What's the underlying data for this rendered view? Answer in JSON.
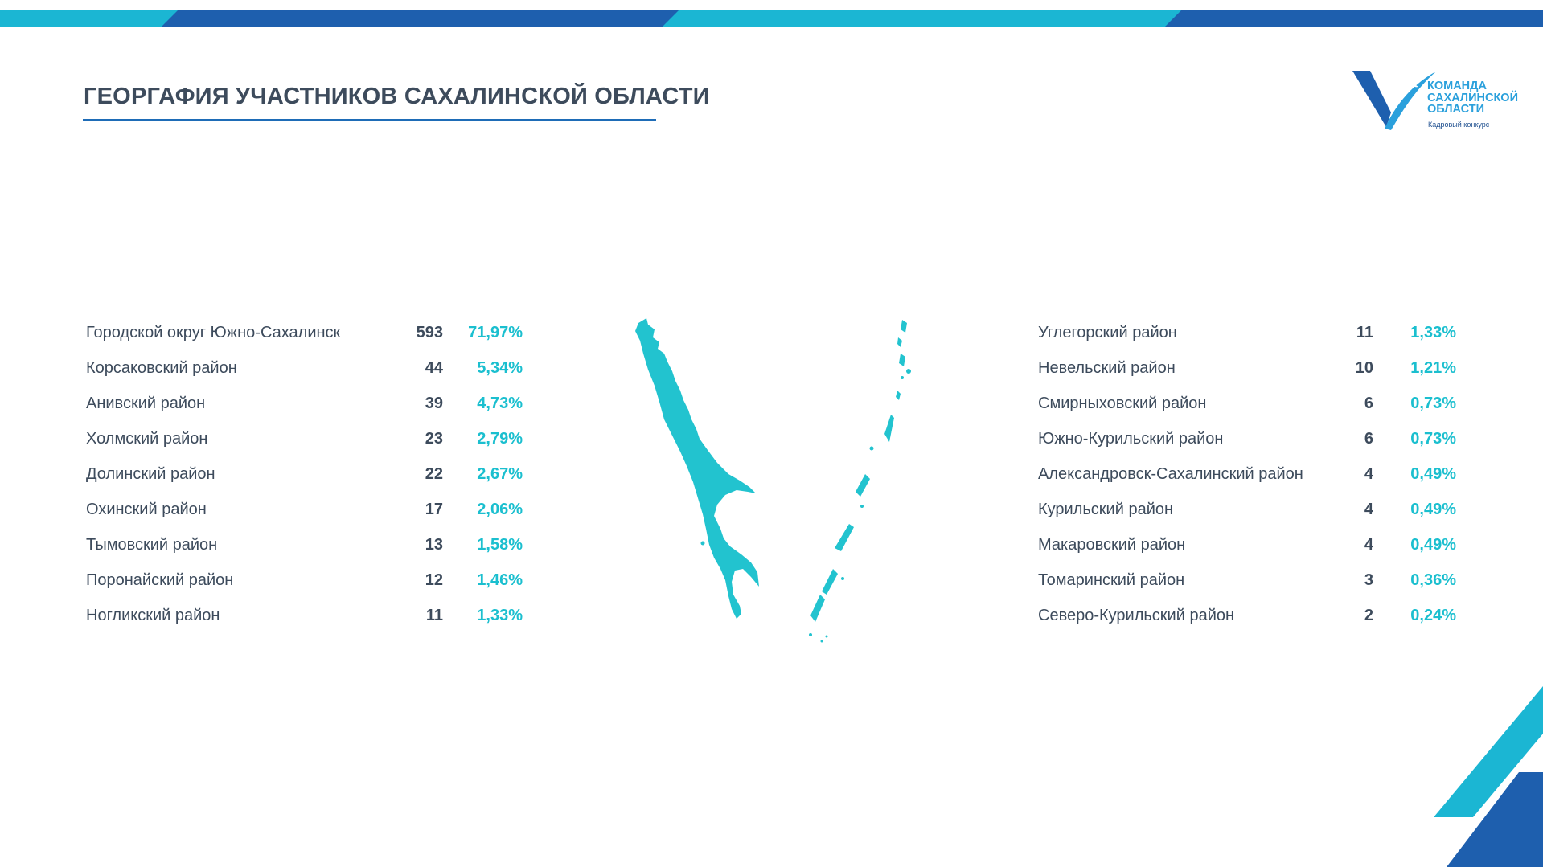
{
  "title": "ГЕОРГАФИЯ УЧАСТНИКОВ САХАЛИНСКОЙ ОБЛАСТИ",
  "logo": {
    "line1": "КОМАНДА",
    "line2": "САХАЛИНСКОЙ",
    "line3": "ОБЛАСТИ",
    "subtitle": "Кадровый конкурс"
  },
  "colors": {
    "accent_cyan": "#1bbfcf",
    "accent_blue": "#1e6cb7",
    "text_dark": "#3d4b5c",
    "map": "#22c3cf"
  },
  "left_rows": [
    {
      "name": "Городской округ Южно-Сахалинск",
      "count": "593",
      "pct": "71,97%"
    },
    {
      "name": "Корсаковский район",
      "count": "44",
      "pct": "5,34%"
    },
    {
      "name": "Анивский район",
      "count": "39",
      "pct": "4,73%"
    },
    {
      "name": "Холмский район",
      "count": "23",
      "pct": "2,79%"
    },
    {
      "name": "Долинский район",
      "count": "22",
      "pct": "2,67%"
    },
    {
      "name": "Охинский район",
      "count": "17",
      "pct": "2,06%"
    },
    {
      "name": "Тымовский район",
      "count": "13",
      "pct": "1,58%"
    },
    {
      "name": "Поронайский район",
      "count": "12",
      "pct": "1,46%"
    },
    {
      "name": "Ногликский район",
      "count": "11",
      "pct": "1,33%"
    }
  ],
  "right_rows": [
    {
      "name": "Углегорский район",
      "count": "11",
      "pct": "1,33%"
    },
    {
      "name": "Невельский район",
      "count": "10",
      "pct": "1,21%"
    },
    {
      "name": "Смирныховский район",
      "count": "6",
      "pct": "0,73%"
    },
    {
      "name": "Южно-Курильский район",
      "count": "6",
      "pct": "0,73%"
    },
    {
      "name": "Александровск-Сахалинский район",
      "count": "4",
      "pct": "0,49%"
    },
    {
      "name": "Курильский район",
      "count": "4",
      "pct": "0,49%"
    },
    {
      "name": "Макаровский район",
      "count": "4",
      "pct": "0,49%"
    },
    {
      "name": "Томаринский район",
      "count": "3",
      "pct": "0,36%"
    },
    {
      "name": "Северо-Курильский район",
      "count": "2",
      "pct": "0,24%"
    }
  ]
}
